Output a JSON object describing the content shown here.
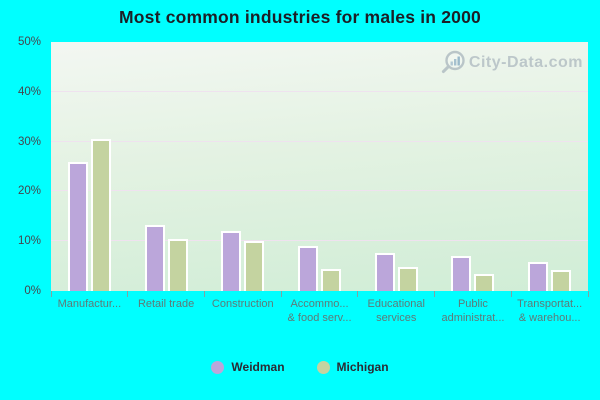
{
  "chart_data": {
    "type": "bar",
    "title": "Most common industries for males in 2000",
    "categories": [
      "Manufacturing",
      "Retail trade",
      "Construction",
      "Accommodation & food services",
      "Educational services",
      "Public administration",
      "Transportation & warehousing"
    ],
    "category_display_labels": [
      [
        "Manufactur..."
      ],
      [
        "Retail trade"
      ],
      [
        "Construction"
      ],
      [
        "Accommo...",
        "& food serv..."
      ],
      [
        "Educational",
        "services"
      ],
      [
        "Public",
        "administrat..."
      ],
      [
        "Transportat...",
        "& warehou..."
      ]
    ],
    "series": [
      {
        "name": "Weidman",
        "color": "#bba6da",
        "values": [
          26.0,
          13.2,
          12.1,
          9.0,
          7.6,
          7.1,
          5.8
        ]
      },
      {
        "name": "Michigan",
        "color": "#c4d3a0",
        "values": [
          30.5,
          10.5,
          10.1,
          4.5,
          4.9,
          3.4,
          4.2
        ]
      }
    ],
    "xlabel": "",
    "ylabel": "",
    "ylim": [
      0,
      50
    ],
    "yticks": [
      0,
      10,
      20,
      30,
      40,
      50
    ],
    "ytick_format": "{v}%",
    "grid": "horizontal",
    "legend_position": "bottom"
  },
  "watermark": {
    "text": "City-Data.com"
  },
  "colors": {
    "page_background": "#00ffff",
    "plot_gradient_top": "#f3f7f2",
    "plot_gradient_bottom": "#d0edd6",
    "gridline": "#efe2ef",
    "bar_border": "#ffffff",
    "axis_text": "#46464e",
    "category_text": "#5e7a78",
    "title_text": "#1c1f26",
    "watermark_text": "#adb8bf"
  }
}
